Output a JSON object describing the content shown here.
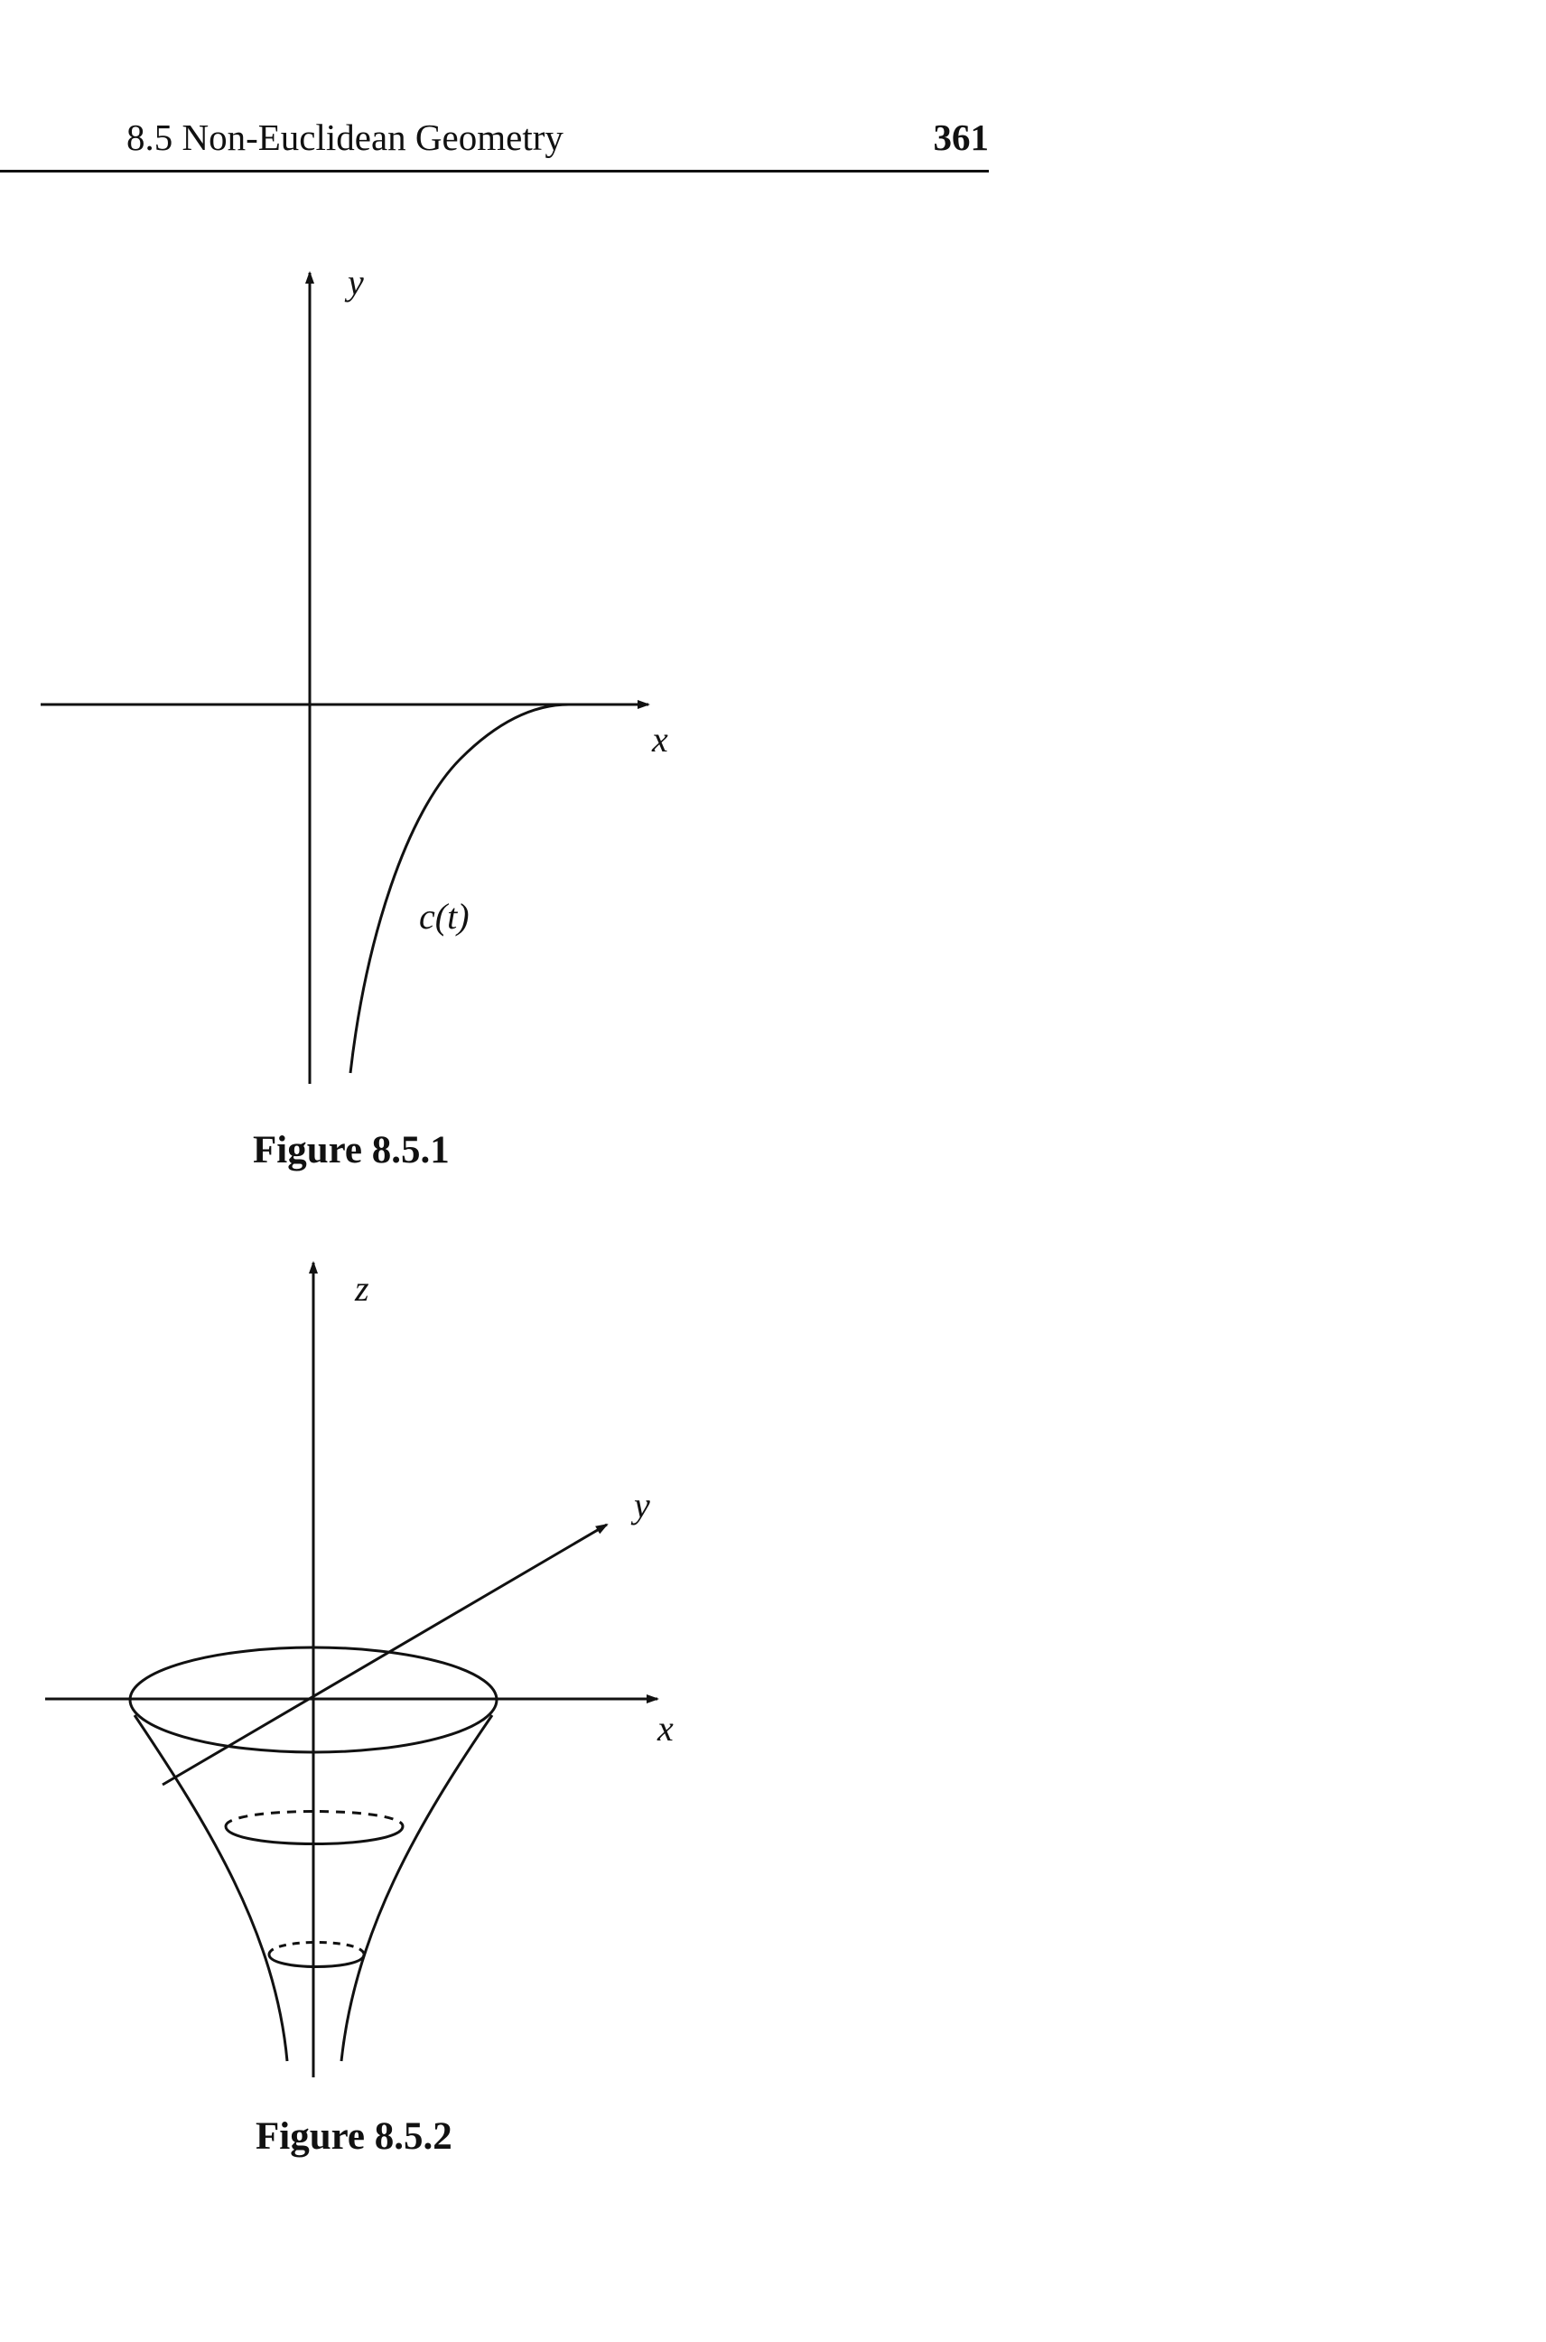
{
  "header": {
    "section_title": "8.5 Non-Euclidean Geometry",
    "page_number": "361"
  },
  "figure1": {
    "caption": "Figure 8.5.1",
    "axis_labels": {
      "x": "x",
      "y": "y"
    },
    "curve_label": "c(t)"
  },
  "figure2": {
    "caption": "Figure 8.5.2",
    "axis_labels": {
      "x": "x",
      "y": "y",
      "z": "z"
    }
  }
}
